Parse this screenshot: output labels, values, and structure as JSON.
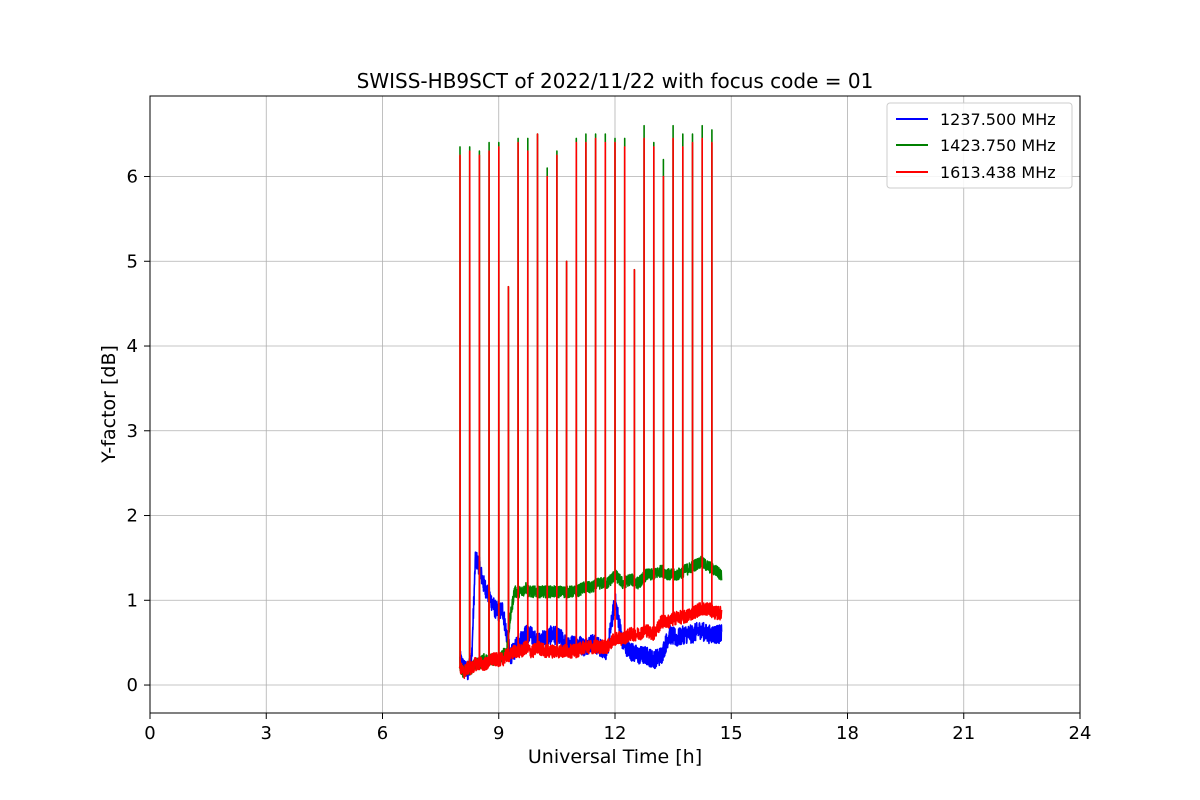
{
  "chart_data": {
    "type": "line",
    "title": "SWISS-HB9SCT of 2022/11/22 with focus code = 01",
    "xlabel": "Universal Time [h]",
    "ylabel": "Y-factor [dB]",
    "xlim": [
      0,
      24
    ],
    "ylim": [
      -0.33,
      6.95
    ],
    "x_ticks": [
      0,
      3,
      6,
      9,
      12,
      15,
      18,
      21,
      24
    ],
    "y_ticks": [
      0,
      1,
      2,
      3,
      4,
      5,
      6
    ],
    "grid": true,
    "legend_position": "top-right",
    "spike_times_h": [
      8.0,
      8.25,
      8.5,
      8.75,
      9.0,
      9.25,
      9.5,
      9.75,
      10.0,
      10.25,
      10.5,
      10.75,
      11.0,
      11.25,
      11.5,
      11.75,
      12.0,
      12.25,
      12.5,
      12.75,
      13.0,
      13.25,
      13.5,
      13.75,
      14.0,
      14.25,
      14.5
    ],
    "series": [
      {
        "name": "1237.500 MHz",
        "color": "#0000ff",
        "x": [
          8.0,
          8.1,
          8.2,
          8.3,
          8.4,
          8.5,
          8.6,
          8.7,
          8.8,
          8.9,
          9.0,
          9.1,
          9.2,
          9.3,
          9.4,
          9.5,
          9.6,
          9.7,
          9.8,
          9.9,
          10.0,
          10.2,
          10.4,
          10.6,
          10.8,
          11.0,
          11.2,
          11.4,
          11.6,
          11.8,
          12.0,
          12.2,
          12.4,
          12.6,
          12.8,
          13.0,
          13.2,
          13.4,
          13.6,
          13.8,
          14.0,
          14.2,
          14.4,
          14.6,
          14.75
        ],
        "values": [
          0.3,
          0.2,
          0.15,
          0.3,
          1.5,
          1.4,
          1.2,
          1.1,
          1.0,
          0.9,
          0.85,
          0.9,
          0.6,
          0.35,
          0.4,
          0.5,
          0.55,
          0.6,
          0.6,
          0.55,
          0.5,
          0.55,
          0.6,
          0.55,
          0.45,
          0.5,
          0.45,
          0.5,
          0.45,
          0.4,
          1.0,
          0.5,
          0.4,
          0.35,
          0.35,
          0.3,
          0.35,
          0.6,
          0.55,
          0.6,
          0.6,
          0.65,
          0.6,
          0.6,
          0.6
        ]
      },
      {
        "name": "1423.750 MHz",
        "color": "#008000",
        "x": [
          8.0,
          8.1,
          8.2,
          8.3,
          8.4,
          8.5,
          8.6,
          8.7,
          8.8,
          8.9,
          9.0,
          9.1,
          9.2,
          9.3,
          9.4,
          9.5,
          9.6,
          9.7,
          9.8,
          9.9,
          10.0,
          10.2,
          10.4,
          10.6,
          10.8,
          11.0,
          11.2,
          11.4,
          11.6,
          11.8,
          12.0,
          12.2,
          12.4,
          12.6,
          12.8,
          13.0,
          13.2,
          13.4,
          13.6,
          13.8,
          14.0,
          14.2,
          14.4,
          14.6,
          14.75
        ],
        "values": [
          0.2,
          0.15,
          0.2,
          0.2,
          0.25,
          0.25,
          0.3,
          0.3,
          0.3,
          0.3,
          0.3,
          0.35,
          0.4,
          0.8,
          1.1,
          1.1,
          1.1,
          1.15,
          1.1,
          1.1,
          1.1,
          1.1,
          1.1,
          1.1,
          1.1,
          1.1,
          1.15,
          1.15,
          1.2,
          1.2,
          1.3,
          1.2,
          1.25,
          1.2,
          1.3,
          1.3,
          1.35,
          1.3,
          1.3,
          1.35,
          1.4,
          1.45,
          1.4,
          1.35,
          1.3
        ]
      },
      {
        "name": "1613.438 MHz",
        "color": "#ff0000",
        "x": [
          8.0,
          8.1,
          8.2,
          8.3,
          8.4,
          8.5,
          8.6,
          8.7,
          8.8,
          8.9,
          9.0,
          9.1,
          9.2,
          9.3,
          9.4,
          9.5,
          9.6,
          9.7,
          9.8,
          9.9,
          10.0,
          10.2,
          10.4,
          10.6,
          10.8,
          11.0,
          11.2,
          11.4,
          11.6,
          11.8,
          12.0,
          12.2,
          12.4,
          12.6,
          12.8,
          13.0,
          13.2,
          13.4,
          13.6,
          13.8,
          14.0,
          14.2,
          14.4,
          14.6,
          14.75
        ],
        "values": [
          0.2,
          0.15,
          0.2,
          0.2,
          0.25,
          0.25,
          0.25,
          0.25,
          0.3,
          0.3,
          0.3,
          0.3,
          0.35,
          0.35,
          0.4,
          0.4,
          0.4,
          0.45,
          0.4,
          0.4,
          0.45,
          0.4,
          0.4,
          0.4,
          0.4,
          0.4,
          0.45,
          0.45,
          0.45,
          0.45,
          0.55,
          0.55,
          0.6,
          0.6,
          0.65,
          0.6,
          0.75,
          0.75,
          0.8,
          0.8,
          0.85,
          0.9,
          0.9,
          0.85,
          0.85
        ]
      }
    ],
    "spike_peaks": [
      {
        "name": "1423.750 MHz",
        "values": [
          6.35,
          6.35,
          6.3,
          6.4,
          6.4,
          4.7,
          6.45,
          6.45,
          6.5,
          6.1,
          6.3,
          5.0,
          6.45,
          6.5,
          6.5,
          6.5,
          6.45,
          6.45,
          4.9,
          6.6,
          6.4,
          6.2,
          6.6,
          6.5,
          6.5,
          6.6,
          6.55
        ]
      },
      {
        "name": "1613.438 MHz",
        "values": [
          6.25,
          6.3,
          6.25,
          6.3,
          6.35,
          4.7,
          6.4,
          6.3,
          6.5,
          6.0,
          6.25,
          5.0,
          6.4,
          6.4,
          6.45,
          6.4,
          6.4,
          6.35,
          4.9,
          6.45,
          6.35,
          6.0,
          6.45,
          6.35,
          6.4,
          6.45,
          6.4
        ]
      }
    ]
  }
}
